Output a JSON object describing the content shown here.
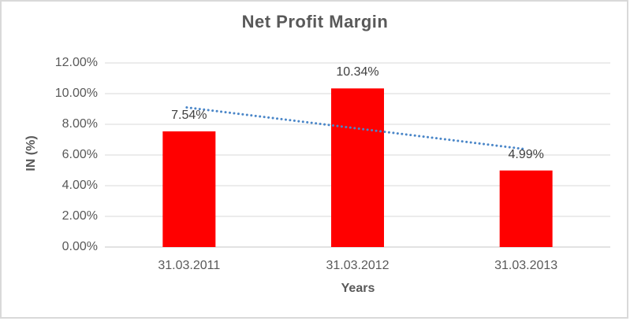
{
  "chart_data": {
    "type": "bar",
    "title": "Net Profit Margin",
    "categories": [
      "31.03.2011",
      "31.03.2012",
      "31.03.2013"
    ],
    "values": [
      7.54,
      10.34,
      4.99
    ],
    "data_labels": [
      "7.54%",
      "10.34%",
      "4.99%"
    ],
    "xlabel": "Years",
    "ylabel": "IN (%)",
    "ylim": [
      0,
      12
    ],
    "ytick_step": 2,
    "ytick_labels": [
      "0.00%",
      "2.00%",
      "4.00%",
      "6.00%",
      "8.00%",
      "10.00%",
      "12.00%"
    ],
    "grid": true,
    "legend_position": "none",
    "bar_color": "#ff0000",
    "trendline": {
      "style": "dotted",
      "color": "#4a86c8",
      "start_value": 9.1,
      "end_value": 6.4
    }
  },
  "colors": {
    "title_text": "#595959",
    "axis_text": "#595959",
    "data_label_text": "#404040",
    "gridline": "#d9d9d9",
    "axis_line": "#c6c6c6",
    "frame_border": "#d9d9d9",
    "background": "#ffffff"
  }
}
